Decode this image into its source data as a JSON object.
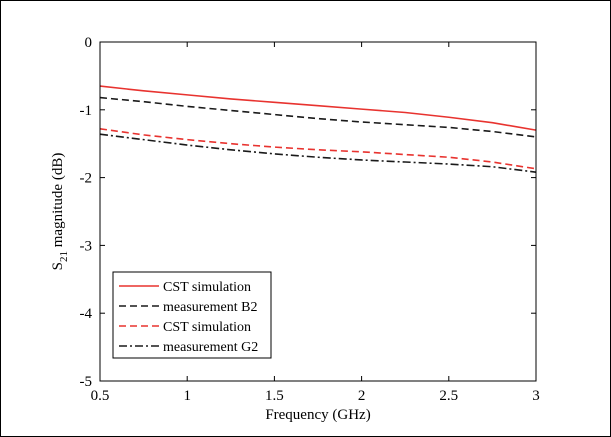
{
  "chart_data": {
    "type": "line",
    "xlabel": "Frequency (GHz)",
    "ylabel": {
      "prefix": "S",
      "subscript": "21",
      "suffix": " magnitude (dB)"
    },
    "xlim": [
      0.5,
      3
    ],
    "ylim": [
      -5,
      0
    ],
    "xticks": [
      0.5,
      1,
      1.5,
      2,
      2.5,
      3
    ],
    "xtick_labels": [
      "0.5",
      "1",
      "1.5",
      "2",
      "2.5",
      "3"
    ],
    "yticks": [
      0,
      -1,
      -2,
      -3,
      -4,
      -5
    ],
    "ytick_labels": [
      "0",
      "-1",
      "-2",
      "-3",
      "-4",
      "-5"
    ],
    "grid": false,
    "legend_position": "lower-left",
    "series": [
      {
        "name": "CST simulation",
        "color": "#e8332f",
        "dash": "solid",
        "x": [
          0.5,
          0.75,
          1.0,
          1.25,
          1.5,
          1.75,
          2.0,
          2.25,
          2.5,
          2.75,
          3.0
        ],
        "y": [
          -0.65,
          -0.72,
          -0.78,
          -0.84,
          -0.89,
          -0.94,
          -0.99,
          -1.04,
          -1.11,
          -1.19,
          -1.3
        ]
      },
      {
        "name": "measurement B2",
        "color": "#1a1a1a",
        "dash": "dashed",
        "x": [
          0.5,
          0.75,
          1.0,
          1.25,
          1.5,
          1.75,
          2.0,
          2.25,
          2.5,
          2.75,
          3.0
        ],
        "y": [
          -0.82,
          -0.88,
          -0.95,
          -1.01,
          -1.07,
          -1.13,
          -1.18,
          -1.22,
          -1.26,
          -1.32,
          -1.4
        ]
      },
      {
        "name": "CST simulation",
        "color": "#e8332f",
        "dash": "dashed",
        "x": [
          0.5,
          0.75,
          1.0,
          1.25,
          1.5,
          1.75,
          2.0,
          2.25,
          2.5,
          2.75,
          3.0
        ],
        "y": [
          -1.28,
          -1.37,
          -1.44,
          -1.5,
          -1.55,
          -1.59,
          -1.62,
          -1.66,
          -1.7,
          -1.77,
          -1.87
        ]
      },
      {
        "name": "measurement G2",
        "color": "#1a1a1a",
        "dash": "dashdot",
        "x": [
          0.5,
          0.75,
          1.0,
          1.25,
          1.5,
          1.75,
          2.0,
          2.25,
          2.5,
          2.75,
          3.0
        ],
        "y": [
          -1.36,
          -1.44,
          -1.52,
          -1.59,
          -1.65,
          -1.7,
          -1.74,
          -1.77,
          -1.8,
          -1.84,
          -1.92
        ]
      }
    ]
  }
}
